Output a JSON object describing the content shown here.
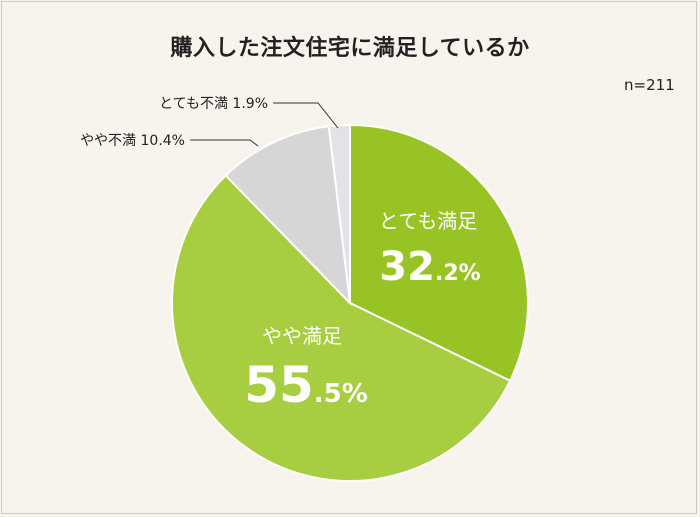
{
  "title": "購入した注文住宅に満足しているか",
  "sample_size": "n=211",
  "chart_data": {
    "type": "pie",
    "title": "購入した注文住宅に満足しているか",
    "slices": [
      {
        "label": "とても満足",
        "value": 32.2,
        "int_part": "32",
        "dec_part": ".2%",
        "color": "#97c424",
        "label_inside": true
      },
      {
        "label": "やや満足",
        "value": 55.5,
        "int_part": "55",
        "dec_part": ".5%",
        "color": "#a7cd40",
        "label_inside": true
      },
      {
        "label": "やや不満",
        "value": 10.4,
        "text": "やや不満 10.4%",
        "color": "#d6d6d6",
        "label_inside": false
      },
      {
        "label": "とても不満",
        "value": 1.9,
        "text": "とても不満 1.9%",
        "color": "#e3e3e3",
        "label_inside": false
      }
    ],
    "start": "12 o'clock",
    "direction": "clockwise"
  }
}
